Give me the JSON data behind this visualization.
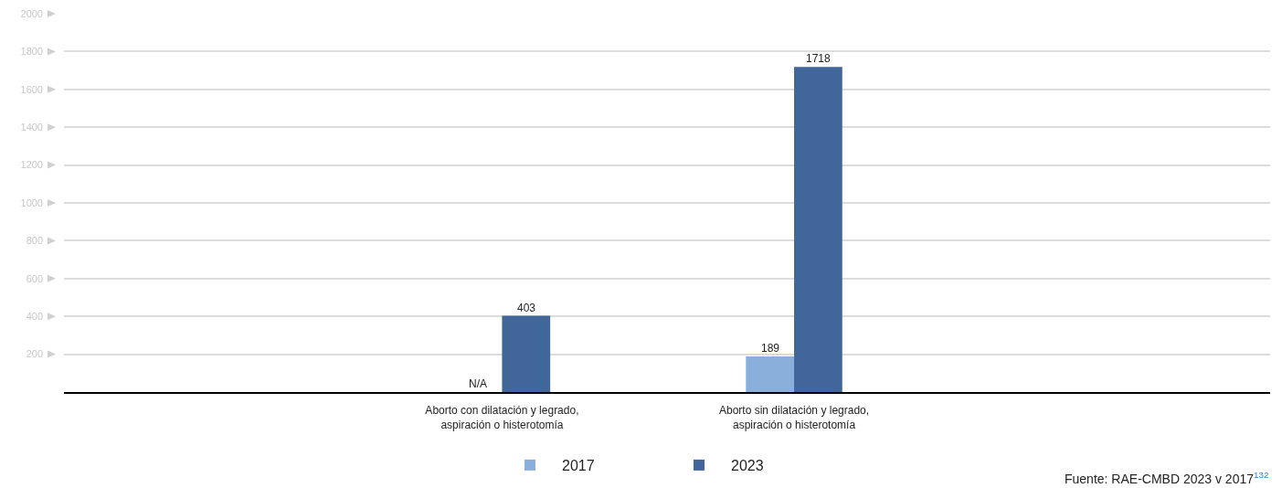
{
  "chart_data": {
    "type": "bar",
    "categories": [
      null,
      "Aborto con dilatación y legrado, aspiración o histerotomía",
      "Aborto sin dilatación y legrado, aspiración o histerotomía",
      null
    ],
    "series": [
      {
        "name": "2017",
        "color": "#8bafdb",
        "values": [
          null,
          null,
          189,
          null
        ],
        "value_labels": [
          null,
          "N/A",
          "189",
          null
        ]
      },
      {
        "name": "2023",
        "color": "#41669a",
        "values": [
          null,
          403,
          1718,
          null
        ],
        "value_labels": [
          null,
          "403",
          "1718",
          null
        ]
      }
    ],
    "ylim": [
      0,
      2000
    ],
    "yticks": [
      {
        "value": 0,
        "label": null
      },
      200,
      400,
      600,
      800,
      1000,
      1200,
      1400,
      1600,
      1800,
      2000
    ],
    "grid": "y",
    "legend": "bottom",
    "annotations": [
      "Fuente: RAE-CMBD 2023 v 2017$^{132}$"
    ]
  }
}
